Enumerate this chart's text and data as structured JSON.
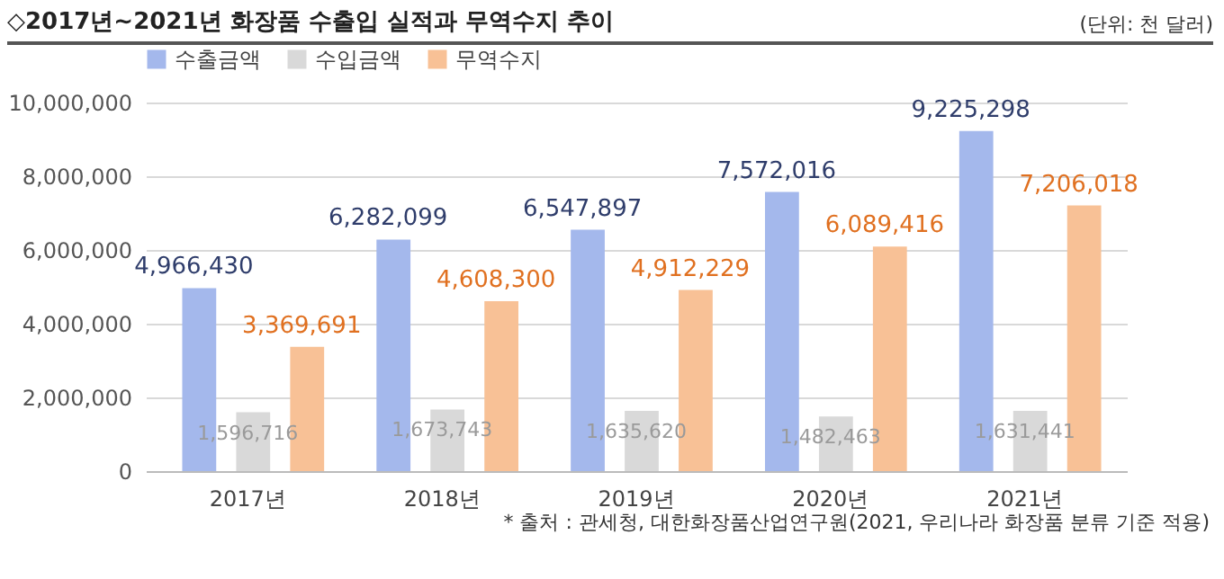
{
  "chart_data": {
    "type": "bar",
    "title": "◇2017년~2021년 화장품 수출입 실적과 무역수지 추이",
    "subtitle": "(단위: 천 달러)",
    "categories": [
      "2017년",
      "2018년",
      "2019년",
      "2020년",
      "2021년"
    ],
    "series": [
      {
        "name": "수출금액",
        "color": "#a4b8ec",
        "values": [
          4966430,
          6282099,
          6547897,
          7572016,
          9225298
        ],
        "value_labels": [
          "4,966,430",
          "6,282,099",
          "6,547,897",
          "7,572,016",
          "9,225,298"
        ]
      },
      {
        "name": "수입금액",
        "color": "#d9d9d9",
        "values": [
          1596716,
          1673743,
          1635620,
          1482463,
          1631441
        ],
        "value_labels": [
          "1,596,716",
          "1,673,743",
          "1,635,620",
          "1,482,463",
          "1,631,441"
        ]
      },
      {
        "name": "무역수지",
        "color": "#f8c196",
        "values": [
          3369691,
          4608300,
          4912229,
          6089416,
          7206018
        ],
        "value_labels": [
          "3,369,691",
          "4,608,300",
          "4,912,229",
          "6,089,416",
          "7,206,018"
        ]
      }
    ],
    "ylim": [
      0,
      10000000
    ],
    "yticks": [
      0,
      {
        "value": 2000000,
        "label": "2,000,000"
      },
      {
        "value": 4000000,
        "label": "4,000,000"
      },
      {
        "value": 6000000,
        "label": "6,000,000"
      },
      {
        "value": 8000000,
        "label": "8,000,000"
      },
      {
        "value": 10000000,
        "label": "10,000,000"
      }
    ],
    "grid": "y",
    "legend": "top",
    "annotations": [
      "* 출처 : 관세청, 대한화장품산업연구원(2021, 우리나라 화장품 분류 기준 적용)"
    ]
  }
}
